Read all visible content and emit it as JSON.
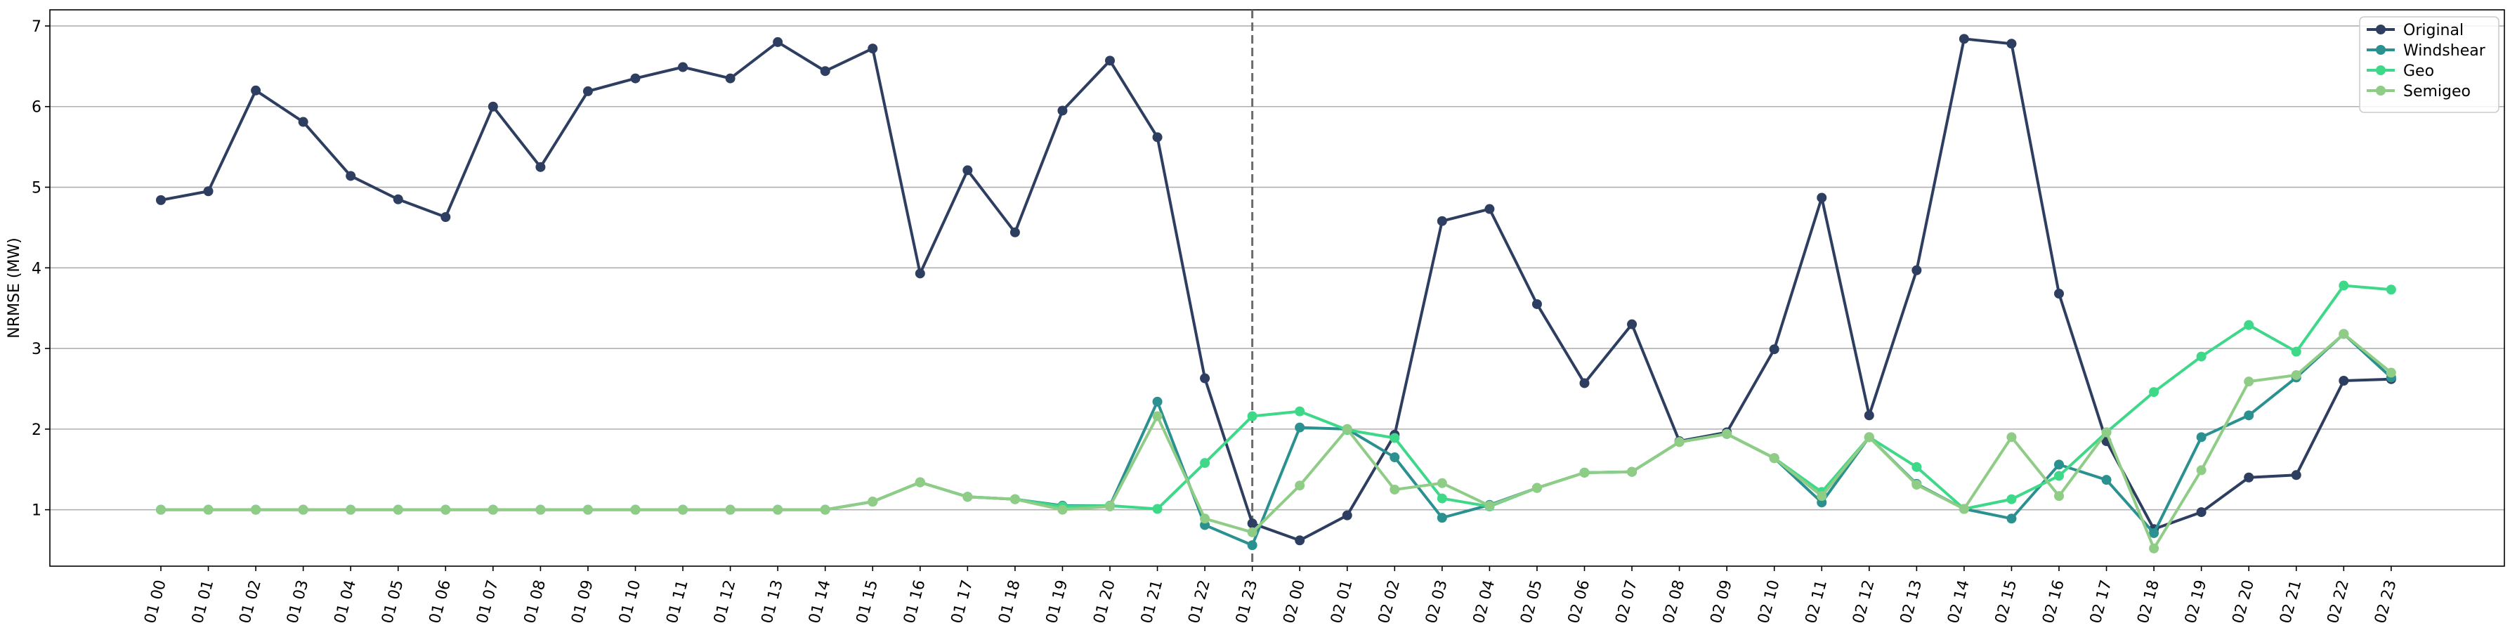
{
  "chart_data": {
    "type": "line",
    "title": "",
    "xlabel": "",
    "ylabel": "NRMSE (MW)",
    "ylim": [
      0.3,
      7.2
    ],
    "yticks": [
      1,
      2,
      3,
      4,
      5,
      6,
      7
    ],
    "grid": "horizontal",
    "legend_position": "top-right",
    "vline_at": "01 23",
    "categories": [
      "01 00",
      "01 01",
      "01 02",
      "01 03",
      "01 04",
      "01 05",
      "01 06",
      "01 07",
      "01 08",
      "01 09",
      "01 10",
      "01 11",
      "01 12",
      "01 13",
      "01 14",
      "01 15",
      "01 16",
      "01 17",
      "01 18",
      "01 19",
      "01 20",
      "01 21",
      "01 22",
      "01 23",
      "02 00",
      "02 01",
      "02 02",
      "02 03",
      "02 04",
      "02 05",
      "02 06",
      "02 07",
      "02 08",
      "02 09",
      "02 10",
      "02 11",
      "02 12",
      "02 13",
      "02 14",
      "02 15",
      "02 16",
      "02 17",
      "02 18",
      "02 19",
      "02 20",
      "02 21",
      "02 22",
      "02 23"
    ],
    "series": [
      {
        "name": "Original",
        "color": "#2d3e60",
        "values": [
          4.84,
          4.95,
          6.2,
          5.81,
          5.14,
          4.85,
          4.63,
          6.0,
          5.25,
          6.19,
          6.35,
          6.49,
          6.35,
          6.8,
          6.44,
          6.72,
          3.93,
          5.21,
          4.44,
          5.95,
          6.57,
          5.62,
          2.63,
          0.83,
          0.62,
          0.93,
          1.93,
          4.58,
          4.73,
          3.55,
          2.57,
          3.3,
          1.85,
          1.96,
          2.99,
          4.87,
          2.17,
          3.97,
          6.84,
          6.78,
          3.68,
          1.85,
          0.76,
          0.97,
          1.4,
          1.43,
          2.6,
          2.62
        ]
      },
      {
        "name": "Windshear",
        "color": "#2a9090",
        "values": [
          1.0,
          1.0,
          1.0,
          1.0,
          1.0,
          1.0,
          1.0,
          1.0,
          1.0,
          1.0,
          1.0,
          1.0,
          1.0,
          1.0,
          1.0,
          1.1,
          1.34,
          1.16,
          1.13,
          1.05,
          1.05,
          2.34,
          0.81,
          0.56,
          2.02,
          2.0,
          1.65,
          0.9,
          1.06,
          1.27,
          1.46,
          1.47,
          1.84,
          1.94,
          1.64,
          1.09,
          1.9,
          1.32,
          1.01,
          0.89,
          1.56,
          1.37,
          0.71,
          1.9,
          2.17,
          2.64,
          3.18,
          2.64
        ]
      },
      {
        "name": "Geo",
        "color": "#3ed889",
        "values": [
          1.0,
          1.0,
          1.0,
          1.0,
          1.0,
          1.0,
          1.0,
          1.0,
          1.0,
          1.0,
          1.0,
          1.0,
          1.0,
          1.0,
          1.0,
          1.1,
          1.34,
          1.16,
          1.13,
          1.04,
          1.05,
          1.01,
          1.58,
          2.16,
          2.22,
          1.99,
          1.89,
          1.14,
          1.04,
          1.27,
          1.46,
          1.47,
          1.84,
          1.94,
          1.64,
          1.22,
          1.9,
          1.53,
          1.01,
          1.13,
          1.42,
          1.96,
          2.46,
          2.9,
          3.29,
          2.96,
          3.78,
          3.73
        ]
      },
      {
        "name": "Semigeo",
        "color": "#8fcc86",
        "values": [
          1.0,
          1.0,
          1.0,
          1.0,
          1.0,
          1.0,
          1.0,
          1.0,
          1.0,
          1.0,
          1.0,
          1.0,
          1.0,
          1.0,
          1.0,
          1.1,
          1.34,
          1.16,
          1.13,
          1.0,
          1.04,
          2.16,
          0.89,
          0.72,
          1.3,
          2.0,
          1.25,
          1.33,
          1.05,
          1.27,
          1.46,
          1.47,
          1.84,
          1.94,
          1.64,
          1.17,
          1.9,
          1.31,
          1.01,
          1.9,
          1.17,
          1.96,
          0.52,
          1.49,
          2.59,
          2.67,
          3.18,
          2.7
        ]
      }
    ]
  }
}
